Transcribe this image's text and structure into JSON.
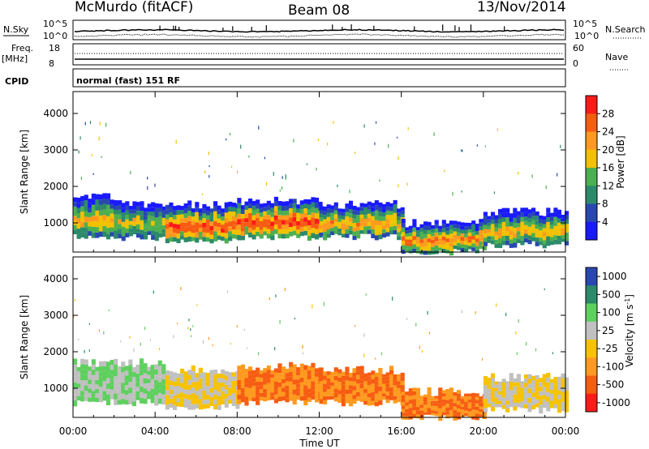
{
  "header": {
    "station": "McMurdo (fitACF)",
    "beam": "Beam 08",
    "date": "13/Nov/2014"
  },
  "status_panels": {
    "nsky_label": "N.Sky",
    "nsearch_label": "N.Search",
    "noise_ticks": [
      "10^5",
      "10^0"
    ],
    "freq_label_1": "Freq.",
    "freq_label_2": "[MHz]",
    "freq_ticks": [
      "18",
      "8"
    ],
    "nave_label": "Nave",
    "nave_ticks": [
      "60",
      "0"
    ],
    "cpid_label": "CPID",
    "cpid_value": "normal (fast) 151 RF"
  },
  "colors": {
    "power": [
      "#1a1aff",
      "#2848b0",
      "#2c8a6a",
      "#4caf50",
      "#f2c100",
      "#ff9a1f",
      "#f75c12",
      "#ff1a1a"
    ],
    "velocity": [
      "#ff1a1a",
      "#f75c12",
      "#ff9a1f",
      "#f7c200",
      "#c0c0c0",
      "#5ed05e",
      "#2c8a6a",
      "#2848b0"
    ]
  },
  "chart_data": [
    {
      "type": "heatmap",
      "parameter": "power",
      "ylabel": "Slant Range [km]",
      "xlabel": "Time UT",
      "x_ticks": [
        "00:00",
        "04:00",
        "08:00",
        "12:00",
        "16:00",
        "20:00",
        "00:00"
      ],
      "xlim_hours": [
        0,
        24
      ],
      "ylim_km": [
        200,
        4600
      ],
      "y_ticks": [
        1000,
        2000,
        3000,
        4000
      ],
      "colorbar_label": "Power [dB]",
      "colorbar_ticks": [
        "4",
        "8",
        "12",
        "16",
        "20",
        "24",
        "28"
      ],
      "colorbar_range": [
        0,
        30
      ],
      "echo_regions": [
        {
          "t_start": 0.0,
          "t_end": 2.0,
          "range_low_km": 600,
          "range_high_km": 1700,
          "power_peak_db": 20
        },
        {
          "t_start": 2.0,
          "t_end": 4.5,
          "range_low_km": 600,
          "range_high_km": 1500,
          "power_peak_db": 18
        },
        {
          "t_start": 4.5,
          "t_end": 8.0,
          "range_low_km": 500,
          "range_high_km": 1500,
          "power_peak_db": 28
        },
        {
          "t_start": 8.0,
          "t_end": 12.0,
          "range_low_km": 600,
          "range_high_km": 1600,
          "power_peak_db": 28
        },
        {
          "t_start": 12.0,
          "t_end": 16.0,
          "range_low_km": 600,
          "range_high_km": 1500,
          "power_peak_db": 22
        },
        {
          "t_start": 16.0,
          "t_end": 20.0,
          "range_low_km": 200,
          "range_high_km": 1000,
          "power_peak_db": 24
        },
        {
          "t_start": 20.0,
          "t_end": 24.0,
          "range_low_km": 400,
          "range_high_km": 1300,
          "power_peak_db": 20
        }
      ]
    },
    {
      "type": "heatmap",
      "parameter": "velocity",
      "ylabel": "Slant Range [km]",
      "xlabel": "Time UT",
      "x_ticks": [
        "00:00",
        "04:00",
        "08:00",
        "12:00",
        "16:00",
        "20:00",
        "00:00"
      ],
      "xlim_hours": [
        0,
        24
      ],
      "ylim_km": [
        200,
        4600
      ],
      "y_ticks": [
        1000,
        2000,
        3000,
        4000
      ],
      "colorbar_label": "Velocity [m s",
      "colorbar_label_sup": "-1",
      "colorbar_label_end": "]",
      "colorbar_ticks": [
        "1000",
        "500",
        "100",
        "25",
        "-25",
        "-100",
        "-500",
        "-1000"
      ],
      "echo_regions": [
        {
          "t_start": 0.0,
          "t_end": 4.5,
          "range_low_km": 600,
          "range_high_km": 1700,
          "velocity_ms": 100
        },
        {
          "t_start": 4.5,
          "t_end": 8.0,
          "range_low_km": 500,
          "range_high_km": 1500,
          "velocity_ms": 25
        },
        {
          "t_start": 8.0,
          "t_end": 12.0,
          "range_low_km": 600,
          "range_high_km": 1600,
          "velocity_ms": -100
        },
        {
          "t_start": 12.0,
          "t_end": 16.0,
          "range_low_km": 600,
          "range_high_km": 1500,
          "velocity_ms": -100
        },
        {
          "t_start": 16.0,
          "t_end": 20.0,
          "range_low_km": 200,
          "range_high_km": 900,
          "velocity_ms": -100
        },
        {
          "t_start": 20.0,
          "t_end": 24.0,
          "range_low_km": 400,
          "range_high_km": 1300,
          "velocity_ms": 25
        }
      ]
    }
  ]
}
